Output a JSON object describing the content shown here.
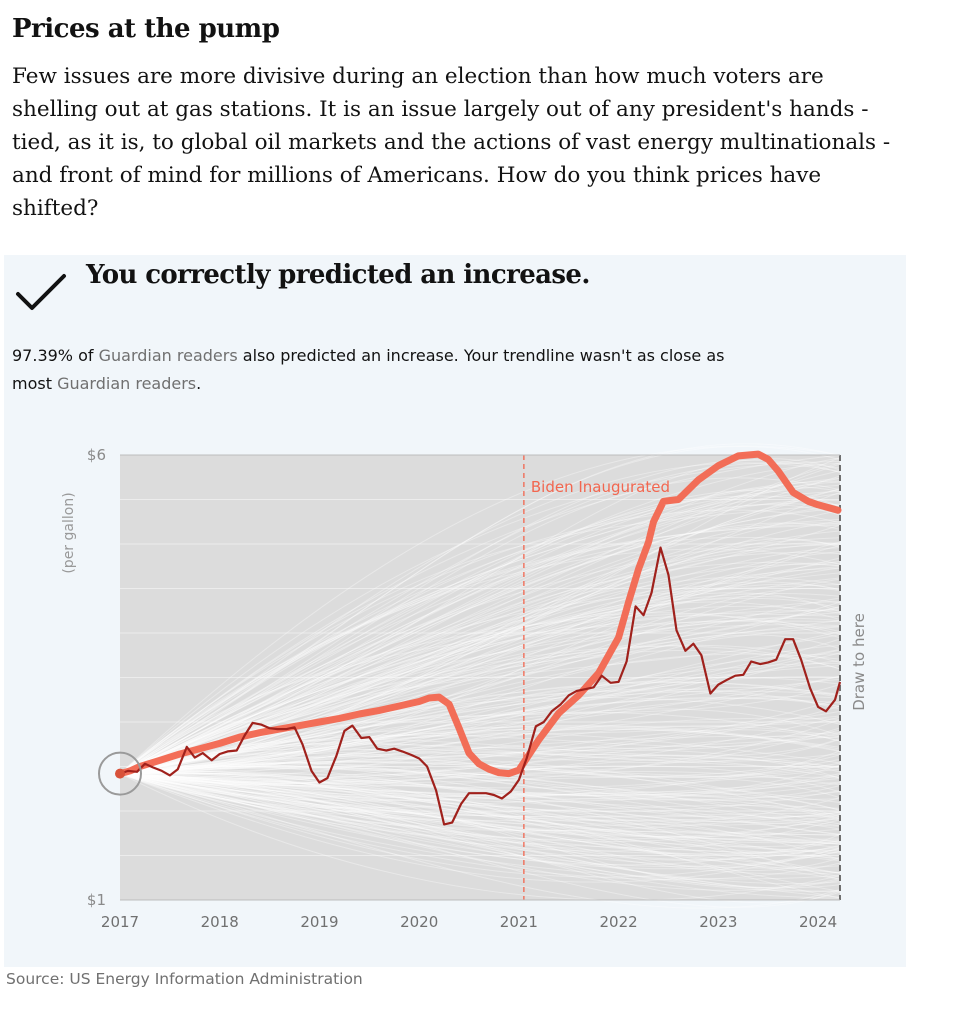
{
  "header": {
    "title": "Prices at the pump",
    "intro": "Few issues are more divisive during an election than how much voters are shelling out at gas stations. It is an issue largely out of any president's hands - tied, as it is, to global oil markets and the actions of vast energy multinationals - and front of mind for millions of Americans. How do you think prices have shifted?"
  },
  "result": {
    "icon": "check-icon",
    "headline": "You correctly predicted an increase.",
    "stat_percent": "97.39%",
    "of_text": " of ",
    "readers_1": "Guardian readers",
    "mid_text": " also predicted an increase. Your trendline wasn't as close as most ",
    "readers_2": "Guardian readers",
    "end_text": "."
  },
  "source": "Source: US Energy Information Administration",
  "colors": {
    "guess": "#f2664f",
    "actual": "#a0211c",
    "readers": "#d3d3d3",
    "panel": "#f1f6fa",
    "marker": "#d8523a"
  },
  "chart_data": {
    "type": "line",
    "ylabel": "(per gallon)",
    "ylim": [
      1,
      6
    ],
    "xlim": [
      2017,
      2024.22
    ],
    "y_ticks": [
      {
        "value": 6,
        "label": "$6"
      },
      {
        "value": 1,
        "label": "$1"
      }
    ],
    "x_ticks": [
      {
        "value": 2017,
        "label": "2017"
      },
      {
        "value": 2018,
        "label": "2018"
      },
      {
        "value": 2019,
        "label": "2019"
      },
      {
        "value": 2020,
        "label": "2020"
      },
      {
        "value": 2021,
        "label": "2021"
      },
      {
        "value": 2022,
        "label": "2022"
      },
      {
        "value": 2023,
        "label": "2023"
      },
      {
        "value": 2024,
        "label": "2024"
      }
    ],
    "annotations": [
      {
        "x": 2021.05,
        "label": "Biden Inaugurated"
      },
      {
        "x": 2024.22,
        "label": "Draw to here"
      }
    ],
    "series": [
      {
        "name": "",
        "role": "actual",
        "x": [
          2017.0,
          2017.08,
          2017.17,
          2017.25,
          2017.33,
          2017.42,
          2017.5,
          2017.58,
          2017.67,
          2017.75,
          2017.83,
          2017.92,
          2018.0,
          2018.08,
          2018.17,
          2018.25,
          2018.33,
          2018.42,
          2018.5,
          2018.58,
          2018.67,
          2018.75,
          2018.83,
          2018.92,
          2019.0,
          2019.08,
          2019.17,
          2019.25,
          2019.33,
          2019.42,
          2019.5,
          2019.58,
          2019.67,
          2019.75,
          2019.83,
          2019.92,
          2020.0,
          2020.08,
          2020.17,
          2020.25,
          2020.33,
          2020.42,
          2020.5,
          2020.58,
          2020.67,
          2020.75,
          2020.83,
          2020.92,
          2021.0,
          2021.08,
          2021.17,
          2021.25,
          2021.33,
          2021.42,
          2021.5,
          2021.58,
          2021.67,
          2021.75,
          2021.83,
          2021.92,
          2022.0,
          2022.08,
          2022.17,
          2022.25,
          2022.33,
          2022.42,
          2022.5,
          2022.58,
          2022.67,
          2022.75,
          2022.83,
          2022.92,
          2023.0,
          2023.08,
          2023.17,
          2023.25,
          2023.33,
          2023.42,
          2023.5,
          2023.58,
          2023.67,
          2023.75,
          2023.83,
          2023.92,
          2024.0,
          2024.08,
          2024.17,
          2024.22
        ],
        "y": [
          2.42,
          2.45,
          2.44,
          2.53,
          2.49,
          2.45,
          2.4,
          2.47,
          2.72,
          2.6,
          2.65,
          2.57,
          2.64,
          2.67,
          2.68,
          2.85,
          2.99,
          2.97,
          2.93,
          2.92,
          2.92,
          2.94,
          2.75,
          2.45,
          2.32,
          2.37,
          2.62,
          2.9,
          2.96,
          2.82,
          2.83,
          2.7,
          2.68,
          2.7,
          2.67,
          2.63,
          2.59,
          2.5,
          2.23,
          1.85,
          1.87,
          2.08,
          2.2,
          2.2,
          2.2,
          2.18,
          2.14,
          2.22,
          2.35,
          2.6,
          2.95,
          3.0,
          3.12,
          3.2,
          3.3,
          3.35,
          3.37,
          3.39,
          3.52,
          3.44,
          3.45,
          3.68,
          4.3,
          4.2,
          4.45,
          4.96,
          4.65,
          4.03,
          3.8,
          3.88,
          3.75,
          3.32,
          3.42,
          3.47,
          3.52,
          3.53,
          3.68,
          3.65,
          3.67,
          3.7,
          3.93,
          3.93,
          3.7,
          3.38,
          3.17,
          3.12,
          3.25,
          3.45
        ]
      },
      {
        "name": "",
        "role": "your-guess",
        "x": [
          2017.0,
          2017.1,
          2017.2,
          2017.4,
          2017.6,
          2017.8,
          2018.0,
          2018.2,
          2018.4,
          2018.6,
          2018.8,
          2019.0,
          2019.2,
          2019.4,
          2019.6,
          2019.8,
          2020.0,
          2020.1,
          2020.2,
          2020.3,
          2020.4,
          2020.5,
          2020.6,
          2020.7,
          2020.8,
          2020.9,
          2021.0,
          2021.2,
          2021.4,
          2021.6,
          2021.8,
          2022.0,
          2022.1,
          2022.2,
          2022.3,
          2022.35,
          2022.45,
          2022.6,
          2022.8,
          2023.0,
          2023.2,
          2023.4,
          2023.5,
          2023.6,
          2023.75,
          2023.9,
          2024.0,
          2024.1,
          2024.2
        ],
        "y": [
          2.42,
          2.45,
          2.5,
          2.57,
          2.64,
          2.7,
          2.76,
          2.83,
          2.88,
          2.92,
          2.96,
          3.0,
          3.04,
          3.09,
          3.13,
          3.18,
          3.23,
          3.27,
          3.28,
          3.2,
          2.93,
          2.65,
          2.53,
          2.47,
          2.43,
          2.42,
          2.46,
          2.8,
          3.1,
          3.3,
          3.55,
          3.95,
          4.35,
          4.72,
          5.02,
          5.25,
          5.48,
          5.5,
          5.72,
          5.88,
          5.99,
          6.01,
          5.95,
          5.82,
          5.58,
          5.48,
          5.44,
          5.41,
          5.38
        ]
      }
    ]
  }
}
